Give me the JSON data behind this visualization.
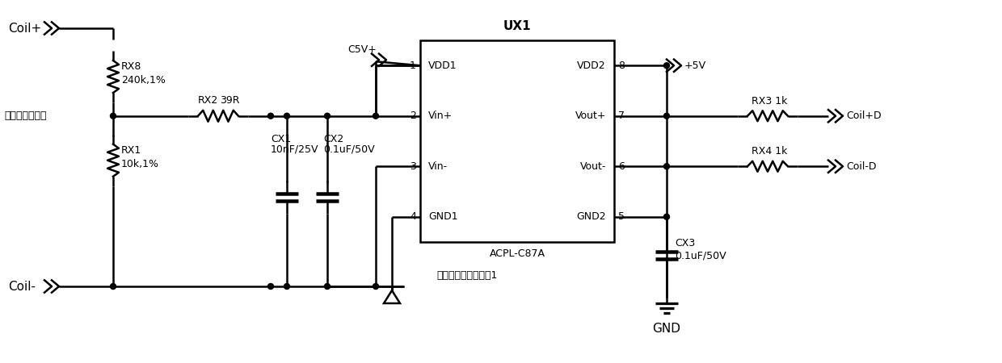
{
  "bg_color": "#ffffff",
  "line_color": "#000000",
  "lw": 1.8,
  "fig_width": 12.4,
  "fig_height": 4.5,
  "dpi": 100,
  "labels": {
    "coil_plus": "Coil+",
    "coil_minus": "Coil-",
    "emf_voltage": "电磁锁线圈电压",
    "rx8": "RX8",
    "rx8_val": "240k,1%",
    "rx1": "RX1",
    "rx1_val": "10k,1%",
    "rx2": "RX2",
    "rx2_val": "39R",
    "c5v": "C5V+",
    "cx1": "CX1",
    "cx1_val": "10nF/25V",
    "cx2": "CX2",
    "cx2_val": "0.1uF/50V",
    "ux1": "UX1",
    "acpl": "ACPL-C87A",
    "iso_desc": "隔离放大器，增益为1",
    "vdd1": "VDD1",
    "vdd2": "VDD2",
    "vin_plus": "Vin+",
    "vin_minus": "Vin-",
    "vout_plus": "Vout+",
    "vout_minus": "Vout-",
    "gnd1": "GND1",
    "gnd2": "GND2",
    "pin1": "1",
    "pin2": "2",
    "pin3": "3",
    "pin4": "4",
    "pin5": "5",
    "pin6": "6",
    "pin7": "7",
    "pin8": "8",
    "plus5v": "+5V",
    "rx3": "RX3 1k",
    "rx4": "RX4 1k",
    "coil_plus_d": "Coil+D",
    "coil_minus_d": "Coil-D",
    "cx3": "CX3",
    "cx3_val": "0.1uF/50V",
    "gnd": "GND"
  },
  "font_size": 10,
  "font_size_small": 9,
  "font_size_label": 11
}
